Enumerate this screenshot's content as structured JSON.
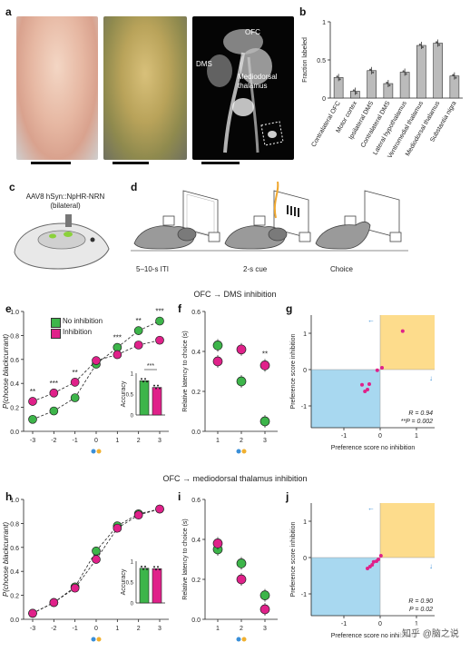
{
  "panel_letters": {
    "a": "a",
    "b": "b",
    "c": "c",
    "d": "d",
    "e": "e",
    "f": "f",
    "g": "g",
    "h": "h",
    "i": "i",
    "j": "j"
  },
  "photo_labels": {
    "ofc": "OFC",
    "dms": "DMS",
    "mdt": "Mediodorsal thalamus"
  },
  "panel_c": {
    "line1": "AAV8 hSyn::NpHR-NRN",
    "line2": "(bilateral)"
  },
  "panel_d": {
    "iti": "5–10-s ITI",
    "cue": "2-s cue",
    "choice": "Choice"
  },
  "section_titles": {
    "ofc_dms": "OFC → DMS inhibition",
    "ofc_mdt": "OFC → mediodorsal thalamus inhibition"
  },
  "legend": {
    "no_inhibition": "No inhibition",
    "inhibition": "Inhibition"
  },
  "colors": {
    "no_inhibition": "#3db54a",
    "inhibition": "#e0218a",
    "bar_grey": "#bbbbbb",
    "quad_orange": "#fddc8c",
    "quad_blue": "#a8d8f0"
  },
  "watermark": "知乎 @脑之说",
  "chart_data": [
    {
      "panel": "b",
      "type": "bar",
      "ylabel": "Fraction labeled",
      "ylim": [
        0,
        1
      ],
      "yticks": [
        0,
        0.5,
        1
      ],
      "categories": [
        "Contralateral OFC",
        "Motor cortex",
        "Ipsilateral DMS",
        "Contralateral DMS",
        "Lateral hypothalamus",
        "Ventromedial thalamus",
        "Mediodorsal thalamus",
        "Substantia nigra"
      ],
      "values": [
        0.27,
        0.09,
        0.36,
        0.19,
        0.34,
        0.69,
        0.72,
        0.29
      ]
    },
    {
      "panel": "e",
      "type": "line",
      "ylabel": "P(choose blackcurrant)",
      "ylim": [
        0,
        1
      ],
      "yticks": [
        0,
        0.2,
        0.4,
        0.6,
        0.8,
        1.0
      ],
      "x": [
        "-3",
        "-2",
        "-1",
        "0",
        "1",
        "2",
        "3"
      ],
      "series": [
        {
          "name": "No inhibition",
          "values": [
            0.1,
            0.17,
            0.28,
            0.56,
            0.7,
            0.84,
            0.92
          ]
        },
        {
          "name": "Inhibition",
          "values": [
            0.25,
            0.32,
            0.41,
            0.59,
            0.64,
            0.72,
            0.76
          ]
        }
      ],
      "significance": [
        "**",
        "***",
        "**",
        "",
        "***",
        "**",
        "***"
      ],
      "inset": {
        "ylabel": "Accuracy",
        "categories": [
          "No inhibition",
          "Inhibition"
        ],
        "values": [
          0.82,
          0.66
        ],
        "ylim": [
          0,
          1
        ],
        "yticks": [
          0,
          0.5,
          1
        ],
        "significance": "***"
      }
    },
    {
      "panel": "f",
      "type": "scatter",
      "ylabel": "Relative latency to choice (s)",
      "ylim": [
        0,
        0.6
      ],
      "yticks": [
        0,
        0.2,
        0.4,
        0.6
      ],
      "x": [
        "1",
        "2",
        "3"
      ],
      "series": [
        {
          "name": "No inhibition",
          "values": [
            0.43,
            0.25,
            0.05
          ]
        },
        {
          "name": "Inhibition",
          "values": [
            0.35,
            0.41,
            0.33
          ]
        }
      ],
      "significance": [
        "",
        "",
        "**"
      ]
    },
    {
      "panel": "g",
      "type": "scatter",
      "xlabel": "Preference score no inhibition",
      "ylabel": "Preference score inhibition",
      "xlim": [
        -1.9,
        1.5
      ],
      "ylim": [
        -1.6,
        1.5
      ],
      "xticks": [
        -1,
        0,
        1
      ],
      "yticks": [
        -1,
        0,
        1
      ],
      "points": [
        [
          0.62,
          1.06
        ],
        [
          0.05,
          0.05
        ],
        [
          -0.08,
          -0.02
        ],
        [
          -0.3,
          -0.4
        ],
        [
          -0.35,
          -0.55
        ],
        [
          -0.42,
          -0.6
        ],
        [
          -0.5,
          -0.42
        ]
      ],
      "annotation": [
        "R = 0.94",
        "**P = 0.002"
      ]
    },
    {
      "panel": "h",
      "type": "line",
      "ylabel": "P(choose blackcurrant)",
      "ylim": [
        0,
        1
      ],
      "yticks": [
        0,
        0.2,
        0.4,
        0.6,
        0.8,
        1.0
      ],
      "x": [
        "-3",
        "-2",
        "-1",
        "0",
        "1",
        "2",
        "3"
      ],
      "series": [
        {
          "name": "No inhibition",
          "values": [
            0.05,
            0.14,
            0.27,
            0.57,
            0.78,
            0.88,
            0.92
          ]
        },
        {
          "name": "Inhibition",
          "values": [
            0.05,
            0.14,
            0.26,
            0.5,
            0.76,
            0.87,
            0.92
          ]
        }
      ],
      "inset": {
        "ylabel": "Accuracy",
        "categories": [
          "No inhibition",
          "Inhibition"
        ],
        "values": [
          0.83,
          0.82
        ],
        "ylim": [
          0,
          1
        ],
        "yticks": [
          0,
          0.5,
          1
        ]
      }
    },
    {
      "panel": "i",
      "type": "scatter",
      "ylabel": "Relative latency to choice (s)",
      "ylim": [
        0,
        0.6
      ],
      "yticks": [
        0,
        0.2,
        0.4,
        0.6
      ],
      "x": [
        "1",
        "2",
        "3"
      ],
      "series": [
        {
          "name": "No inhibition",
          "values": [
            0.35,
            0.28,
            0.12
          ]
        },
        {
          "name": "Inhibition",
          "values": [
            0.38,
            0.2,
            0.05
          ]
        }
      ]
    },
    {
      "panel": "j",
      "type": "scatter",
      "xlabel": "Preference score no inhibition",
      "ylabel": "Preference score inhibition",
      "xlim": [
        -1.9,
        1.5
      ],
      "ylim": [
        -1.6,
        1.5
      ],
      "xticks": [
        -1,
        0,
        1
      ],
      "yticks": [
        -1,
        0,
        1
      ],
      "points": [
        [
          0.02,
          0.05
        ],
        [
          -0.05,
          -0.05
        ],
        [
          -0.1,
          -0.1
        ],
        [
          -0.18,
          -0.12
        ],
        [
          -0.22,
          -0.2
        ],
        [
          -0.28,
          -0.25
        ],
        [
          -0.35,
          -0.3
        ]
      ],
      "annotation": [
        "R = 0.90",
        "P = 0.02"
      ]
    }
  ]
}
